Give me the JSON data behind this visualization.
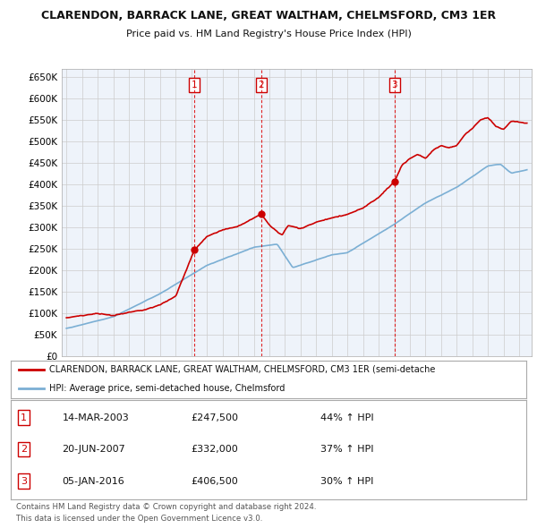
{
  "title": "CLARENDON, BARRACK LANE, GREAT WALTHAM, CHELMSFORD, CM3 1ER",
  "subtitle": "Price paid vs. HM Land Registry's House Price Index (HPI)",
  "ylabel_ticks": [
    "£0",
    "£50K",
    "£100K",
    "£150K",
    "£200K",
    "£250K",
    "£300K",
    "£350K",
    "£400K",
    "£450K",
    "£500K",
    "£550K",
    "£600K",
    "£650K"
  ],
  "ytick_values": [
    0,
    50000,
    100000,
    150000,
    200000,
    250000,
    300000,
    350000,
    400000,
    450000,
    500000,
    550000,
    600000,
    650000
  ],
  "ylim": [
    0,
    670000
  ],
  "vline_x": [
    2003.2,
    2007.47,
    2016.01
  ],
  "sale_labels": [
    "1",
    "2",
    "3"
  ],
  "legend_line1": "CLARENDON, BARRACK LANE, GREAT WALTHAM, CHELMSFORD, CM3 1ER (semi-detache",
  "legend_line2": "HPI: Average price, semi-detached house, Chelmsford",
  "table_data": [
    [
      "1",
      "14-MAR-2003",
      "£247,500",
      "44% ↑ HPI"
    ],
    [
      "2",
      "20-JUN-2007",
      "£332,000",
      "37% ↑ HPI"
    ],
    [
      "3",
      "05-JAN-2016",
      "£406,500",
      "30% ↑ HPI"
    ]
  ],
  "footnote1": "Contains HM Land Registry data © Crown copyright and database right 2024.",
  "footnote2": "This data is licensed under the Open Government Licence v3.0.",
  "red_color": "#cc0000",
  "blue_color": "#7bafd4",
  "grid_color": "#cccccc",
  "bg_color": "#ffffff",
  "chart_bg": "#eef3fa"
}
